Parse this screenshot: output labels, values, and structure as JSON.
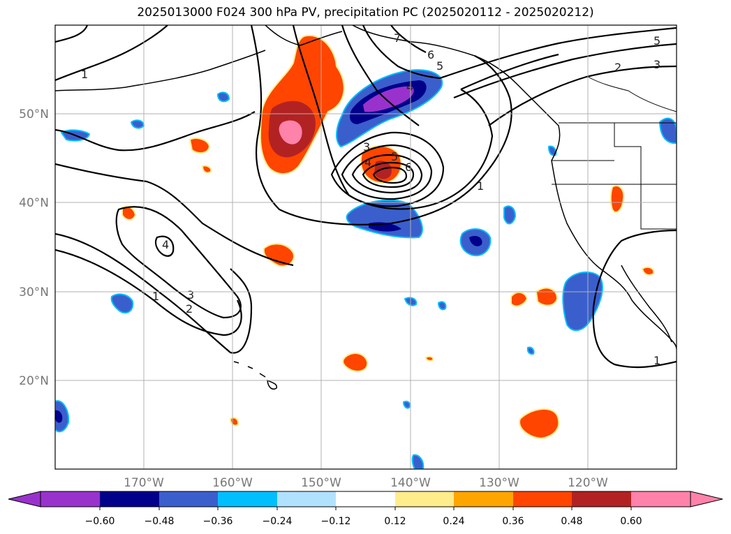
{
  "title": "2025013000 F024 300 hPa PV, precipitation PC (2025020112 - 2025020212)",
  "map": {
    "lon_range": [
      -177.5,
      -107.5
    ],
    "lat_range": [
      10,
      60
    ],
    "lat_labels": [
      "20°N",
      "30°N",
      "40°N",
      "50°N"
    ],
    "lat_values": [
      20,
      30,
      40,
      50
    ],
    "lon_labels": [
      "170°W",
      "160°W",
      "150°W",
      "140°W",
      "130°W",
      "120°W"
    ],
    "lon_values": [
      -170,
      -160,
      -150,
      -140,
      -130,
      -120
    ],
    "gridlines": true
  },
  "colorbar": {
    "tick_labels": [
      "−0.60",
      "−0.48",
      "−0.36",
      "−0.24",
      "−0.12",
      "0.12",
      "0.24",
      "0.36",
      "0.48",
      "0.60"
    ],
    "colors": [
      "#9932CC",
      "#00008B",
      "#3A5FCD",
      "#00BFFF",
      "#B0E2FF",
      "#FFFFFF",
      "#FFEC8B",
      "#FFA500",
      "#FF4500",
      "#B22222",
      "#FF82AB"
    ],
    "extend": "both"
  },
  "pv_contour_labels": [
    "1",
    "1",
    "1",
    "1",
    "2",
    "2",
    "3",
    "3",
    "3",
    "4",
    "4",
    "4",
    "5",
    "5",
    "5",
    "6",
    "6",
    "7"
  ]
}
